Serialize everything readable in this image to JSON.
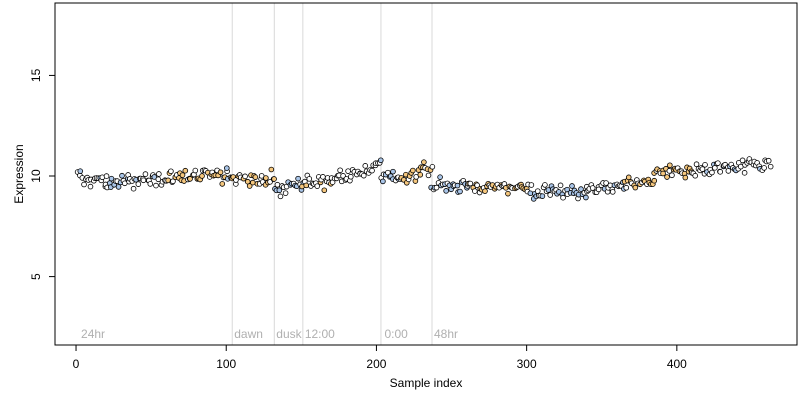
{
  "chart_data": {
    "type": "scatter",
    "xlabel": "Sample index",
    "ylabel": "Expression",
    "xlim": [
      -14,
      480
    ],
    "ylim": [
      1.6,
      18.6
    ],
    "x_ticks": [
      0,
      100,
      200,
      300,
      400
    ],
    "y_ticks": [
      5,
      10,
      15
    ],
    "grid": false,
    "colors": {
      "default": "#ffffff",
      "orange": "#f5c77e",
      "blue": "#a9c5e8",
      "stroke": "#000000",
      "vline": "#d9d9d9",
      "annotation": "#b0b0b0"
    },
    "annotations": [
      {
        "label": "24hr",
        "x": 2
      },
      {
        "label": "dawn",
        "x": 104
      },
      {
        "label": "dusk",
        "x": 132
      },
      {
        "label": "12:00",
        "x": 151
      },
      {
        "label": "0:00",
        "x": 204
      },
      {
        "label": "48hr",
        "x": 237
      }
    ],
    "vlines": [
      104,
      132,
      151,
      203,
      237
    ],
    "segments": [
      {
        "x0": 1,
        "x1": 20,
        "y0": 9.9,
        "y1": 9.8,
        "color": "default"
      },
      {
        "x0": 20,
        "x1": 35,
        "y0": 9.6,
        "y1": 9.7,
        "color": "blue"
      },
      {
        "x0": 35,
        "x1": 60,
        "y0": 9.7,
        "y1": 9.9,
        "color": "default"
      },
      {
        "x0": 60,
        "x1": 100,
        "y0": 9.9,
        "y1": 10.0,
        "color": "orange"
      },
      {
        "x0": 100,
        "x1": 104,
        "y0": 10.1,
        "y1": 10.1,
        "color": "default"
      },
      {
        "x0": 104,
        "x1": 132,
        "y0": 9.9,
        "y1": 9.9,
        "color": "orange"
      },
      {
        "x0": 132,
        "x1": 151,
        "y0": 9.3,
        "y1": 9.7,
        "color": "blue"
      },
      {
        "x0": 151,
        "x1": 170,
        "y0": 9.8,
        "y1": 9.7,
        "color": "orange"
      },
      {
        "x0": 170,
        "x1": 203,
        "y0": 9.8,
        "y1": 10.5,
        "color": "default"
      },
      {
        "x0": 203,
        "x1": 215,
        "y0": 10.0,
        "y1": 9.9,
        "color": "blue"
      },
      {
        "x0": 215,
        "x1": 237,
        "y0": 9.9,
        "y1": 10.4,
        "color": "orange"
      },
      {
        "x0": 237,
        "x1": 260,
        "y0": 9.5,
        "y1": 9.5,
        "color": "blue"
      },
      {
        "x0": 260,
        "x1": 300,
        "y0": 9.5,
        "y1": 9.5,
        "color": "orange"
      },
      {
        "x0": 300,
        "x1": 340,
        "y0": 9.3,
        "y1": 9.2,
        "color": "blue"
      },
      {
        "x0": 340,
        "x1": 365,
        "y0": 9.3,
        "y1": 9.5,
        "color": "default"
      },
      {
        "x0": 365,
        "x1": 385,
        "y0": 9.5,
        "y1": 9.7,
        "color": "orange"
      },
      {
        "x0": 385,
        "x1": 410,
        "y0": 10.1,
        "y1": 10.3,
        "color": "orange"
      },
      {
        "x0": 410,
        "x1": 462,
        "y0": 10.3,
        "y1": 10.6,
        "color": "default"
      }
    ]
  }
}
